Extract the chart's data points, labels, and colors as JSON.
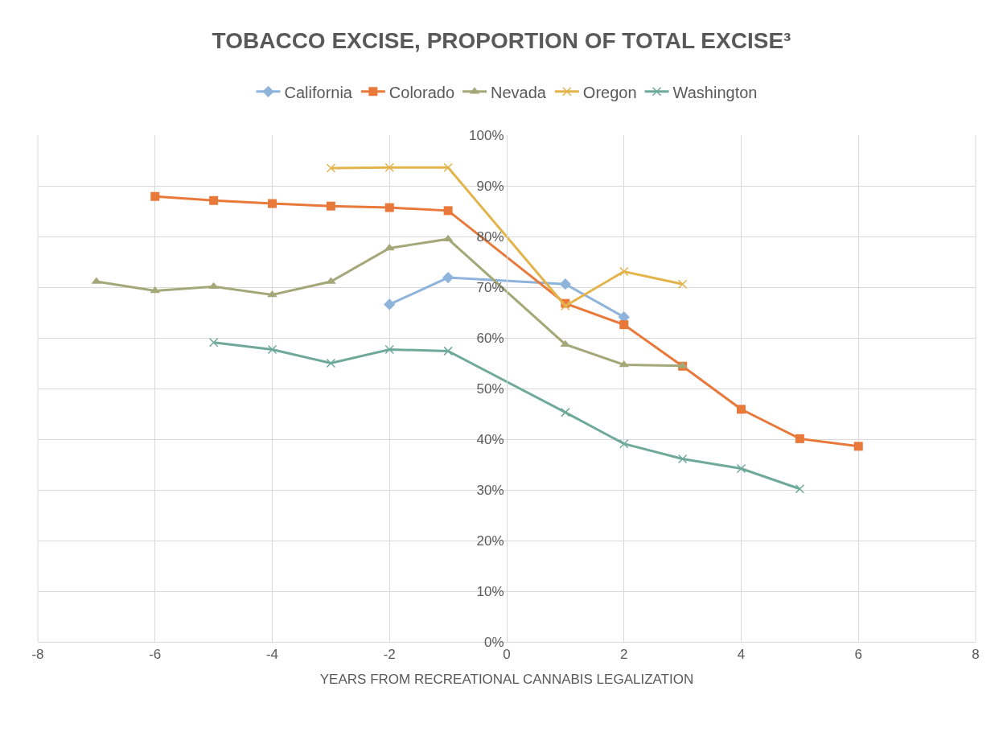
{
  "chart_data": {
    "type": "line",
    "title": "TOBACCO EXCISE, PROPORTION OF TOTAL EXCISE³",
    "xlabel": "YEARS FROM RECREATIONAL CANNABIS LEGALIZATION",
    "series": [
      {
        "name": "California",
        "color": "#8fb4dc",
        "marker": "diamond",
        "x": [
          -2,
          -1,
          1,
          2
        ],
        "values": [
          66.6,
          71.9,
          70.6,
          64.1
        ]
      },
      {
        "name": "Colorado",
        "color": "#e8793a",
        "marker": "square",
        "x": [
          -6,
          -5,
          -4,
          -3,
          -2,
          -1,
          1,
          2,
          3,
          4,
          5,
          6
        ],
        "values": [
          87.9,
          87.1,
          86.5,
          86.0,
          85.7,
          85.1,
          66.8,
          62.6,
          54.4,
          45.9,
          40.1,
          38.6
        ]
      },
      {
        "name": "Nevada",
        "color": "#a3a878",
        "marker": "triangle",
        "x": [
          -7,
          -6,
          -5,
          -4,
          -3,
          -2,
          -1,
          1,
          2,
          3
        ],
        "values": [
          71.1,
          69.3,
          70.1,
          68.5,
          71.1,
          77.7,
          79.5,
          58.7,
          54.7,
          54.5
        ]
      },
      {
        "name": "Oregon",
        "color": "#e3b44b",
        "marker": "cross",
        "x": [
          -3,
          -2,
          -1,
          1,
          2,
          3
        ],
        "values": [
          93.5,
          93.6,
          93.6,
          66.3,
          73.1,
          70.6
        ]
      },
      {
        "name": "Washington",
        "color": "#6fa99a",
        "marker": "cross",
        "x": [
          -5,
          -4,
          -3,
          -2,
          -1,
          1,
          2,
          3,
          4,
          5
        ],
        "values": [
          59.1,
          57.7,
          55.0,
          57.7,
          57.4,
          45.3,
          39.1,
          36.1,
          34.2,
          30.2
        ]
      }
    ],
    "xlim": [
      -8,
      8
    ],
    "xticks": [
      -8,
      -6,
      -4,
      -2,
      0,
      2,
      4,
      6,
      8
    ],
    "ylim": [
      0,
      100
    ],
    "yticks": [
      {
        "value": 0,
        "label": "0%"
      },
      {
        "value": 10,
        "label": "10%"
      },
      {
        "value": 20,
        "label": "20%"
      },
      {
        "value": 30,
        "label": "30%"
      },
      {
        "value": 40,
        "label": "40%"
      },
      {
        "value": 50,
        "label": "50%"
      },
      {
        "value": 60,
        "label": "60%"
      },
      {
        "value": 70,
        "label": "70%"
      },
      {
        "value": 80,
        "label": "80%"
      },
      {
        "value": 90,
        "label": "90%"
      },
      {
        "value": 100,
        "label": "100%"
      }
    ],
    "grid": true,
    "legend": "top",
    "line_style": "solid"
  }
}
